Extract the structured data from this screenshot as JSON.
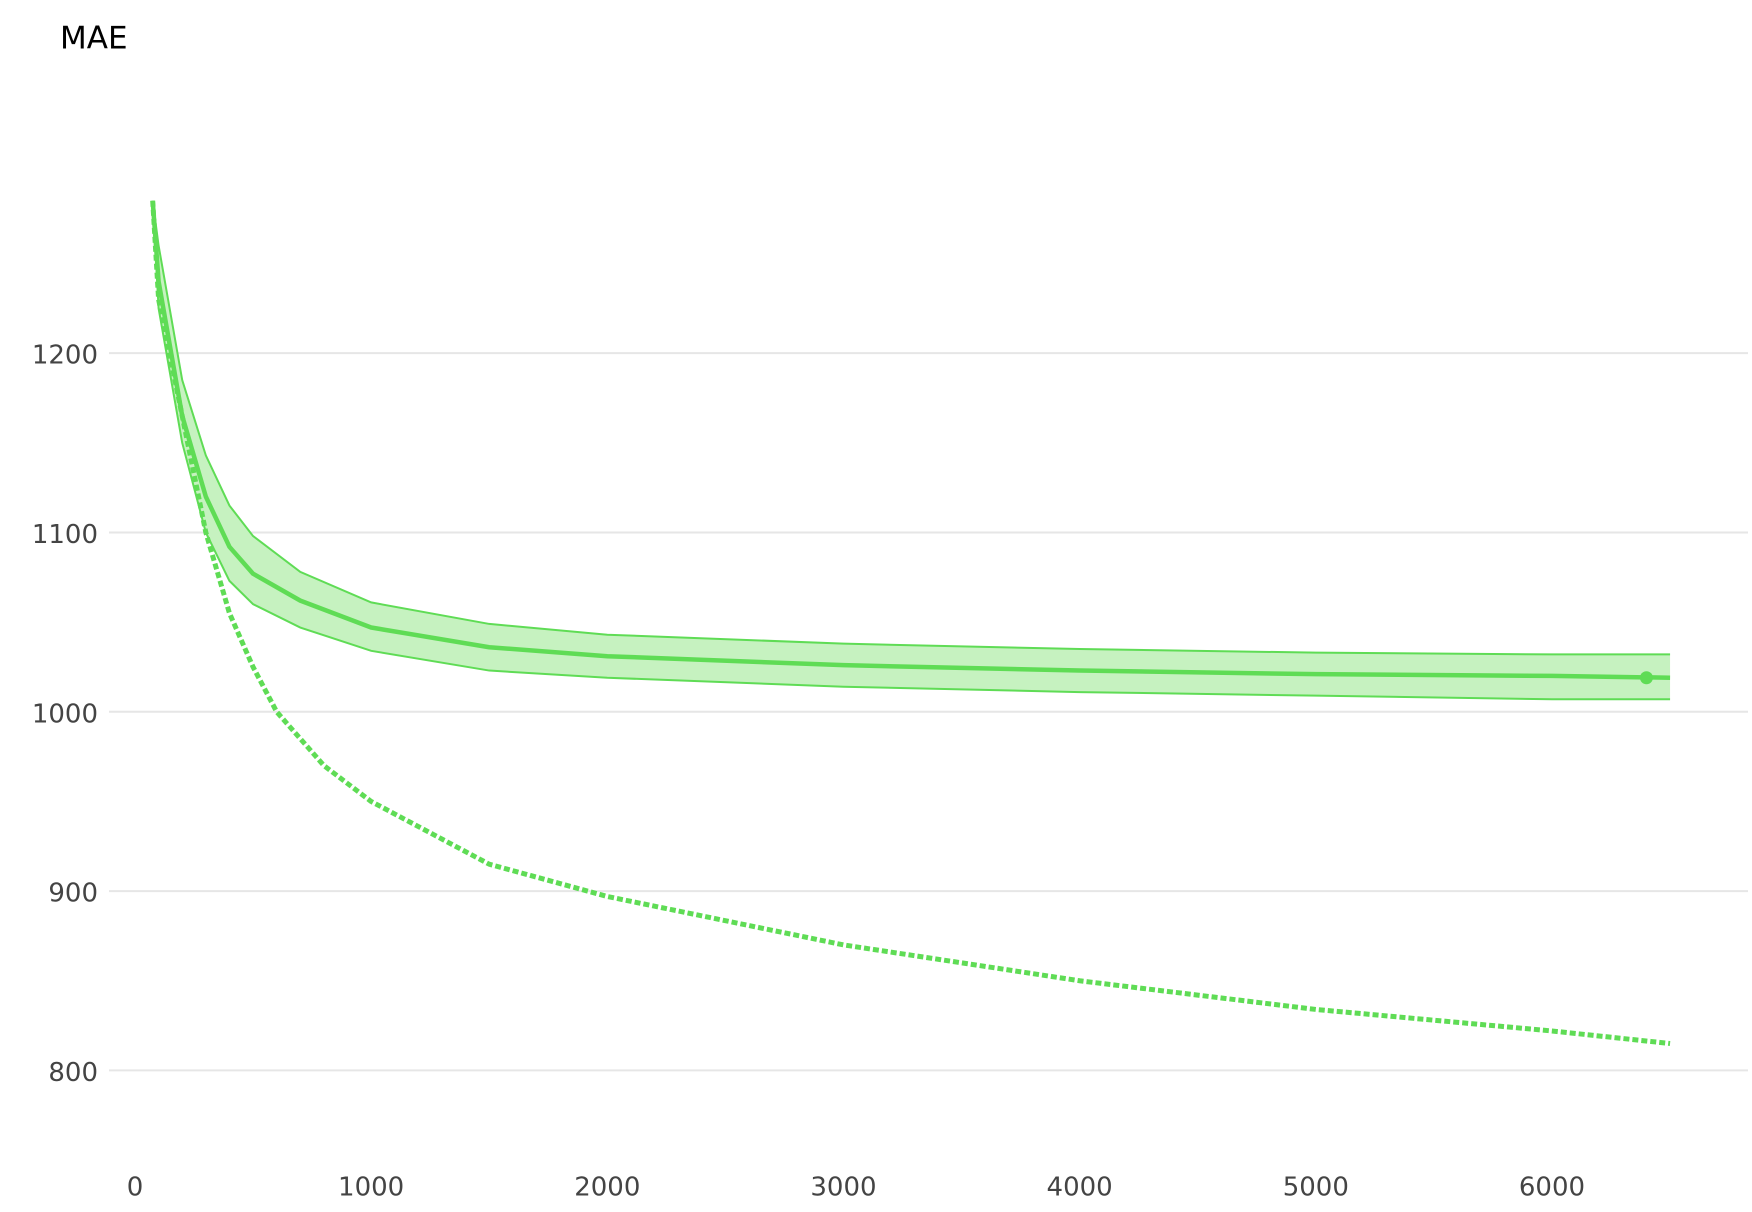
{
  "chart_data": {
    "type": "line",
    "title": "MAE",
    "xlim": [
      -110,
      6830
    ],
    "ylim": [
      740,
      1320
    ],
    "xticks": [
      0,
      1000,
      2000,
      3000,
      4000,
      5000,
      6000
    ],
    "yticks": [
      800,
      900,
      1000,
      1100,
      1200
    ],
    "grid": true,
    "color": "#5fdc55",
    "band_color": "#c6f2c0",
    "series": [
      {
        "dashed": false,
        "x": [
          75,
          100,
          200,
          300,
          400,
          500,
          700,
          1000,
          1500,
          2000,
          3000,
          4000,
          5000,
          6000,
          6500
        ],
        "values": [
          1285,
          1240,
          1165,
          1120,
          1092,
          1077,
          1062,
          1047,
          1036,
          1031,
          1026,
          1023,
          1021,
          1020,
          1019
        ],
        "band_upper": [
          1285,
          1260,
          1185,
          1143,
          1115,
          1098,
          1078,
          1061,
          1049,
          1043,
          1038,
          1035,
          1033,
          1032,
          1032
        ],
        "band_lower": [
          1285,
          1225,
          1150,
          1100,
          1073,
          1060,
          1047,
          1034,
          1023,
          1019,
          1014,
          1011,
          1009,
          1007,
          1007
        ],
        "marker": {
          "x": 6400,
          "y": 1019
        }
      },
      {
        "dashed": true,
        "x": [
          75,
          100,
          200,
          300,
          400,
          500,
          600,
          800,
          1000,
          1500,
          2000,
          3000,
          4000,
          5000,
          6000,
          6500
        ],
        "values": [
          1285,
          1230,
          1165,
          1100,
          1055,
          1025,
          1000,
          970,
          950,
          915,
          897,
          870,
          850,
          834,
          822,
          815
        ]
      }
    ]
  }
}
